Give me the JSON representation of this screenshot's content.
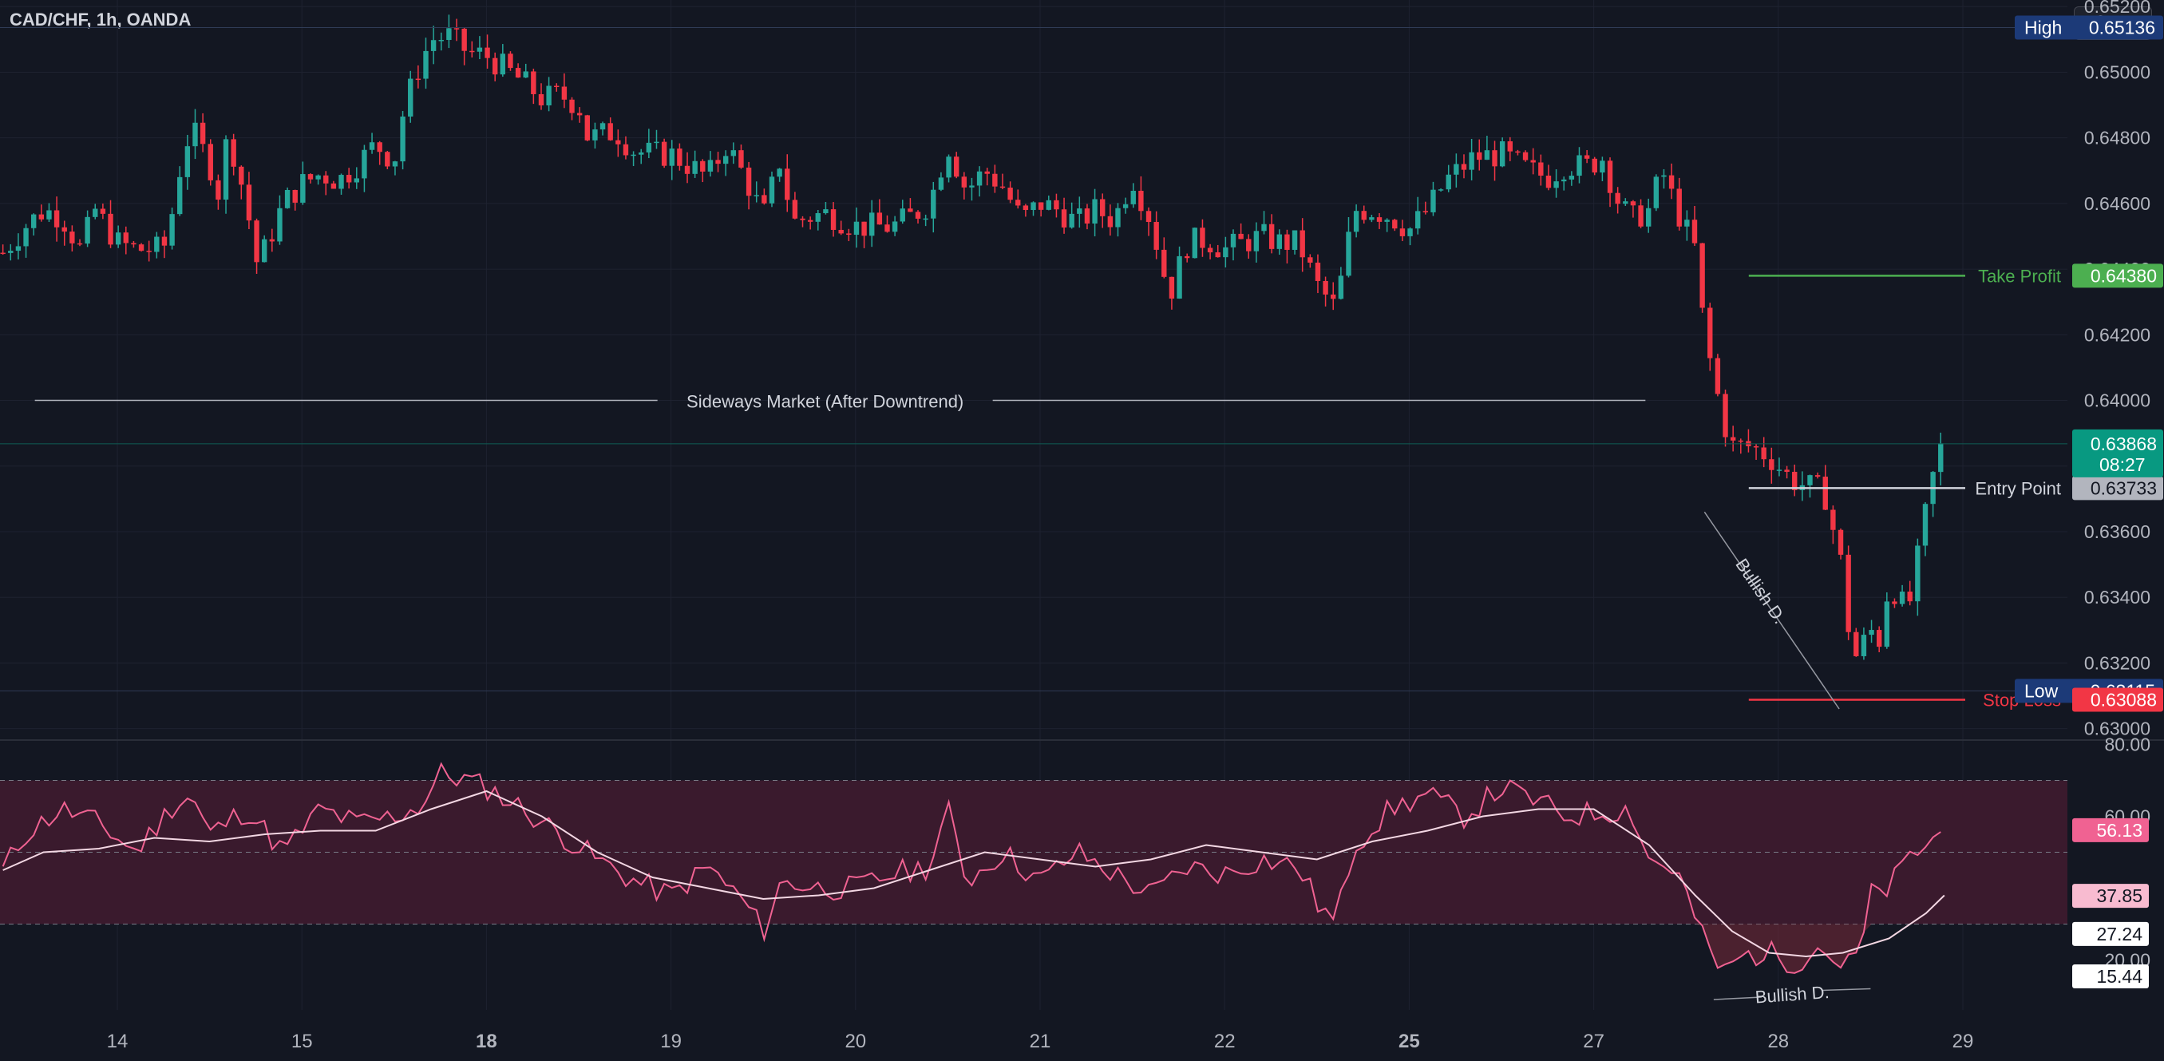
{
  "header": {
    "symbol": "CAD/CHF, 1h, OANDA",
    "currency": "CHF"
  },
  "colors": {
    "background": "#131722",
    "grid": "#1e2230",
    "up": "#26a69a",
    "down": "#f23645",
    "take_profit": "#4caf50",
    "stop_loss": "#f23645",
    "entry": "#d1d4dc",
    "rsi_line": "#f06292",
    "rsi_ma": "#f3d7e3",
    "rsi_band": "#3a1a2d",
    "high_low_badge": "#1c3a78",
    "last_price": "#089981"
  },
  "chart_data": [
    {
      "type": "candlestick",
      "title": "CAD/CHF, 1h, OANDA",
      "y_axis_ticks": [
        "0.65200",
        "0.65000",
        "0.64800",
        "0.64600",
        "0.64400",
        "0.64200",
        "0.64000",
        "0.63800",
        "0.63600",
        "0.63400",
        "0.63200",
        "0.63000"
      ],
      "x_axis_ticks": [
        {
          "label": "14",
          "pos": 14,
          "bold": false
        },
        {
          "label": "15",
          "pos": 15,
          "bold": false
        },
        {
          "label": "18",
          "pos": 16,
          "bold": true
        },
        {
          "label": "19",
          "pos": 17,
          "bold": false
        },
        {
          "label": "20",
          "pos": 18,
          "bold": false
        },
        {
          "label": "21",
          "pos": 19,
          "bold": false
        },
        {
          "label": "22",
          "pos": 20,
          "bold": false
        },
        {
          "label": "25",
          "pos": 21,
          "bold": true
        },
        {
          "label": "27",
          "pos": 22,
          "bold": false
        },
        {
          "label": "28",
          "pos": 23,
          "bold": false
        },
        {
          "label": "29",
          "pos": 24,
          "bold": false
        }
      ],
      "ylim": [
        0.6297,
        0.6522
      ],
      "path": [
        [
          13.38,
          0.6445
        ],
        [
          13.5,
          0.6453
        ],
        [
          13.6,
          0.6458
        ],
        [
          13.7,
          0.6456
        ],
        [
          13.8,
          0.6446
        ],
        [
          13.88,
          0.6458
        ],
        [
          14.0,
          0.6448
        ],
        [
          14.1,
          0.6446
        ],
        [
          14.25,
          0.6446
        ],
        [
          14.3,
          0.6458
        ],
        [
          14.35,
          0.6474
        ],
        [
          14.4,
          0.6483
        ],
        [
          14.5,
          0.6472
        ],
        [
          14.55,
          0.6463
        ],
        [
          14.6,
          0.6482
        ],
        [
          14.7,
          0.646
        ],
        [
          14.75,
          0.6442
        ],
        [
          14.8,
          0.6446
        ],
        [
          14.9,
          0.646
        ],
        [
          15.0,
          0.6466
        ],
        [
          15.1,
          0.6469
        ],
        [
          15.2,
          0.6467
        ],
        [
          15.3,
          0.6472
        ],
        [
          15.4,
          0.6478
        ],
        [
          15.5,
          0.6473
        ],
        [
          15.55,
          0.6488
        ],
        [
          15.62,
          0.65
        ],
        [
          15.7,
          0.651
        ],
        [
          15.8,
          0.6511
        ],
        [
          15.9,
          0.6506
        ],
        [
          16.0,
          0.6505
        ],
        [
          16.1,
          0.6501
        ],
        [
          16.2,
          0.6497
        ],
        [
          16.3,
          0.6492
        ],
        [
          16.4,
          0.6493
        ],
        [
          16.5,
          0.649
        ],
        [
          16.55,
          0.648
        ],
        [
          16.7,
          0.6482
        ],
        [
          16.8,
          0.6476
        ],
        [
          16.9,
          0.6475
        ],
        [
          17.0,
          0.6475
        ],
        [
          17.2,
          0.6468
        ],
        [
          17.3,
          0.6478
        ],
        [
          17.4,
          0.6468
        ],
        [
          17.5,
          0.6456
        ],
        [
          17.6,
          0.6475
        ],
        [
          17.65,
          0.6454
        ],
        [
          17.75,
          0.6456
        ],
        [
          17.85,
          0.6457
        ],
        [
          18.0,
          0.6453
        ],
        [
          18.1,
          0.6453
        ],
        [
          18.2,
          0.6453
        ],
        [
          18.3,
          0.6456
        ],
        [
          18.4,
          0.646
        ],
        [
          18.5,
          0.6478
        ],
        [
          18.6,
          0.6464
        ],
        [
          18.7,
          0.647
        ],
        [
          18.8,
          0.6465
        ],
        [
          18.9,
          0.6455
        ],
        [
          19.0,
          0.646
        ],
        [
          19.1,
          0.6458
        ],
        [
          19.2,
          0.6454
        ],
        [
          19.3,
          0.6458
        ],
        [
          19.4,
          0.6455
        ],
        [
          19.5,
          0.6468
        ],
        [
          19.6,
          0.6455
        ],
        [
          19.7,
          0.6432
        ],
        [
          19.8,
          0.6448
        ],
        [
          19.9,
          0.6449
        ],
        [
          20.0,
          0.6446
        ],
        [
          20.1,
          0.6448
        ],
        [
          20.2,
          0.645
        ],
        [
          20.3,
          0.6448
        ],
        [
          20.4,
          0.6448
        ],
        [
          20.5,
          0.6435
        ],
        [
          20.6,
          0.6428
        ],
        [
          20.65,
          0.6442
        ],
        [
          20.7,
          0.6458
        ],
        [
          20.8,
          0.6458
        ],
        [
          20.9,
          0.6456
        ],
        [
          21.0,
          0.6452
        ],
        [
          21.1,
          0.6458
        ],
        [
          21.2,
          0.6467
        ],
        [
          21.35,
          0.6474
        ],
        [
          21.5,
          0.6475
        ],
        [
          21.65,
          0.647
        ],
        [
          21.75,
          0.6468
        ],
        [
          21.85,
          0.6472
        ],
        [
          21.95,
          0.6471
        ],
        [
          22.05,
          0.6474
        ],
        [
          22.12,
          0.6462
        ],
        [
          22.2,
          0.6455
        ],
        [
          22.3,
          0.6458
        ],
        [
          22.37,
          0.647
        ],
        [
          22.45,
          0.6458
        ],
        [
          22.55,
          0.6446
        ],
        [
          22.6,
          0.642
        ],
        [
          22.7,
          0.6394
        ],
        [
          22.75,
          0.6386
        ],
        [
          22.85,
          0.6386
        ],
        [
          22.95,
          0.6383
        ],
        [
          23.0,
          0.638
        ],
        [
          23.05,
          0.6377
        ],
        [
          23.1,
          0.6375
        ],
        [
          23.2,
          0.6373
        ],
        [
          23.25,
          0.6372
        ],
        [
          23.35,
          0.6348
        ],
        [
          23.4,
          0.632
        ],
        [
          23.5,
          0.633
        ],
        [
          23.55,
          0.6327
        ],
        [
          23.6,
          0.6345
        ],
        [
          23.7,
          0.6335
        ],
        [
          23.75,
          0.635
        ],
        [
          23.8,
          0.6366
        ],
        [
          23.85,
          0.638
        ],
        [
          23.9,
          0.6389
        ]
      ],
      "price_badges": [
        {
          "label": "High",
          "value": "0.65136",
          "price": 0.65136,
          "kind": "high"
        },
        {
          "label": "Low",
          "value": "0.63115",
          "price": 0.63115,
          "kind": "low"
        }
      ],
      "levels": [
        {
          "name": "Take Profit",
          "value": "0.64380",
          "price": 0.6438,
          "x_start": 22.84,
          "kind": "tp"
        },
        {
          "name": "Entry Point",
          "value": "0.63733",
          "price": 0.63733,
          "x_start": 22.84,
          "kind": "entry"
        },
        {
          "name": "Stop Loss",
          "value": "0.63088",
          "price": 0.63088,
          "x_start": 22.84,
          "kind": "sl"
        }
      ],
      "last_price": {
        "value": "0.63868",
        "countdown": "08:27",
        "price": 0.63868
      },
      "annotations": [
        {
          "text": "Sideways Market (After Downtrend)",
          "price": 0.64,
          "x_from": 13.38,
          "x_to": 22.28
        },
        {
          "text": "Bullish D.",
          "from": [
            22.6,
            0.6366
          ],
          "to": [
            23.33,
            0.6306
          ]
        }
      ]
    },
    {
      "type": "line",
      "title": "RSI",
      "y_axis_ticks": [
        "80.00",
        "60.00",
        "20.00"
      ],
      "ylim": [
        5,
        85
      ],
      "band": [
        30,
        70
      ],
      "midline": 50,
      "series": [
        {
          "name": "",
          "values": [
            [
              13.38,
              45
            ],
            [
              13.5,
              55
            ],
            [
              13.7,
              62
            ],
            [
              13.9,
              58
            ],
            [
              14.1,
              50
            ],
            [
              14.3,
              63
            ],
            [
              14.4,
              66
            ],
            [
              14.5,
              55
            ],
            [
              14.7,
              62
            ],
            [
              14.9,
              50
            ],
            [
              15.1,
              62
            ],
            [
              15.3,
              58
            ],
            [
              15.5,
              60
            ],
            [
              15.65,
              63
            ],
            [
              15.75,
              72
            ],
            [
              15.9,
              70
            ],
            [
              16.0,
              68
            ],
            [
              16.2,
              62
            ],
            [
              16.4,
              55
            ],
            [
              16.6,
              48
            ],
            [
              16.8,
              42
            ],
            [
              17.0,
              38
            ],
            [
              17.2,
              46
            ],
            [
              17.4,
              36
            ],
            [
              17.5,
              28
            ],
            [
              17.6,
              42
            ],
            [
              17.8,
              40
            ],
            [
              18.0,
              40
            ],
            [
              18.2,
              44
            ],
            [
              18.4,
              46
            ],
            [
              18.5,
              62
            ],
            [
              18.6,
              42
            ],
            [
              18.8,
              50
            ],
            [
              19.0,
              42
            ],
            [
              19.2,
              50
            ],
            [
              19.4,
              44
            ],
            [
              19.6,
              38
            ],
            [
              19.8,
              46
            ],
            [
              20.0,
              44
            ],
            [
              20.2,
              48
            ],
            [
              20.4,
              46
            ],
            [
              20.5,
              36
            ],
            [
              20.6,
              30
            ],
            [
              20.7,
              52
            ],
            [
              20.9,
              62
            ],
            [
              21.1,
              66
            ],
            [
              21.3,
              60
            ],
            [
              21.5,
              68
            ],
            [
              21.7,
              64
            ],
            [
              21.85,
              60
            ],
            [
              22.0,
              61
            ],
            [
              22.2,
              62
            ],
            [
              22.3,
              48
            ],
            [
              22.45,
              45
            ],
            [
              22.6,
              25
            ],
            [
              22.7,
              16
            ],
            [
              22.8,
              21
            ],
            [
              22.95,
              22
            ],
            [
              23.1,
              19
            ],
            [
              23.2,
              24
            ],
            [
              23.3,
              21
            ],
            [
              23.35,
              17
            ],
            [
              23.45,
              23
            ],
            [
              23.5,
              38
            ],
            [
              23.6,
              40
            ],
            [
              23.7,
              48
            ],
            [
              23.9,
              56
            ]
          ]
        },
        {
          "name": "",
          "values": [
            [
              13.38,
              45
            ],
            [
              13.6,
              50
            ],
            [
              13.9,
              51
            ],
            [
              14.2,
              54
            ],
            [
              14.5,
              53
            ],
            [
              14.8,
              55
            ],
            [
              15.1,
              56
            ],
            [
              15.4,
              56
            ],
            [
              15.7,
              62
            ],
            [
              16.0,
              67
            ],
            [
              16.3,
              60
            ],
            [
              16.6,
              50
            ],
            [
              16.9,
              43
            ],
            [
              17.2,
              40
            ],
            [
              17.5,
              37
            ],
            [
              17.8,
              38
            ],
            [
              18.1,
              40
            ],
            [
              18.4,
              45
            ],
            [
              18.7,
              50
            ],
            [
              19.0,
              48
            ],
            [
              19.3,
              46
            ],
            [
              19.6,
              48
            ],
            [
              19.9,
              52
            ],
            [
              20.2,
              50
            ],
            [
              20.5,
              48
            ],
            [
              20.8,
              53
            ],
            [
              21.1,
              56
            ],
            [
              21.4,
              60
            ],
            [
              21.7,
              62
            ],
            [
              22.0,
              62
            ],
            [
              22.3,
              52
            ],
            [
              22.55,
              38
            ],
            [
              22.75,
              28
            ],
            [
              22.95,
              22
            ],
            [
              23.15,
              21
            ],
            [
              23.35,
              22
            ],
            [
              23.6,
              26
            ],
            [
              23.8,
              33
            ],
            [
              23.9,
              38
            ]
          ]
        }
      ],
      "value_badges": [
        {
          "value": "56.13",
          "y": 56.13,
          "kind": "rsi"
        },
        {
          "value": "37.85",
          "y": 37.85,
          "kind": "ma"
        },
        {
          "value": "27.24",
          "y": 27.24,
          "kind": "white"
        },
        {
          "value": "15.44",
          "y": 15.44,
          "kind": "white"
        }
      ],
      "annotations": [
        {
          "text": "Bullish D.",
          "from": [
            22.65,
            9
          ],
          "to": [
            23.5,
            12
          ]
        }
      ]
    }
  ]
}
